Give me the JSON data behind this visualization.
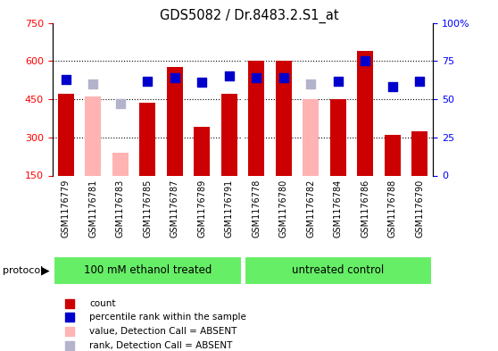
{
  "title": "GDS5082 / Dr.8483.2.S1_at",
  "samples": [
    "GSM1176779",
    "GSM1176781",
    "GSM1176783",
    "GSM1176785",
    "GSM1176787",
    "GSM1176789",
    "GSM1176791",
    "GSM1176778",
    "GSM1176780",
    "GSM1176782",
    "GSM1176784",
    "GSM1176786",
    "GSM1176788",
    "GSM1176790"
  ],
  "bar_values": [
    470,
    null,
    null,
    435,
    575,
    340,
    470,
    600,
    600,
    null,
    450,
    640,
    310,
    325
  ],
  "bar_absent": [
    null,
    460,
    240,
    null,
    null,
    null,
    null,
    null,
    null,
    450,
    null,
    null,
    null,
    null
  ],
  "rank_values": [
    63,
    null,
    null,
    62,
    64,
    61,
    65,
    64,
    64,
    null,
    62,
    75,
    58,
    62
  ],
  "rank_absent": [
    null,
    60,
    47,
    null,
    null,
    null,
    null,
    null,
    null,
    60,
    null,
    null,
    null,
    null
  ],
  "groups": [
    {
      "label": "100 mM ethanol treated",
      "start": 0,
      "end": 7
    },
    {
      "label": "untreated control",
      "start": 7,
      "end": 14
    }
  ],
  "ylim_left": [
    150,
    750
  ],
  "ylim_right": [
    0,
    100
  ],
  "yticks_left": [
    150,
    300,
    450,
    600,
    750
  ],
  "ytick_labels_left": [
    "150",
    "300",
    "450",
    "600",
    "750"
  ],
  "yticks_right": [
    0,
    25,
    50,
    75,
    100
  ],
  "ytick_labels_right": [
    "0",
    "25",
    "50",
    "75",
    "100%"
  ],
  "bar_color": "#cc0000",
  "bar_absent_color": "#ffb3b3",
  "rank_color": "#0000cc",
  "rank_absent_color": "#b3b3cc",
  "bg_color": "#ffffff",
  "tick_bg_color": "#cccccc",
  "group_color": "#66ee66",
  "legend_items": [
    {
      "label": "count",
      "color": "#cc0000"
    },
    {
      "label": "percentile rank within the sample",
      "color": "#0000cc"
    },
    {
      "label": "value, Detection Call = ABSENT",
      "color": "#ffb3b3"
    },
    {
      "label": "rank, Detection Call = ABSENT",
      "color": "#b3b3cc"
    }
  ],
  "bar_width": 0.6,
  "rank_marker_size": 45,
  "hgrid_values": [
    300,
    450,
    600
  ]
}
